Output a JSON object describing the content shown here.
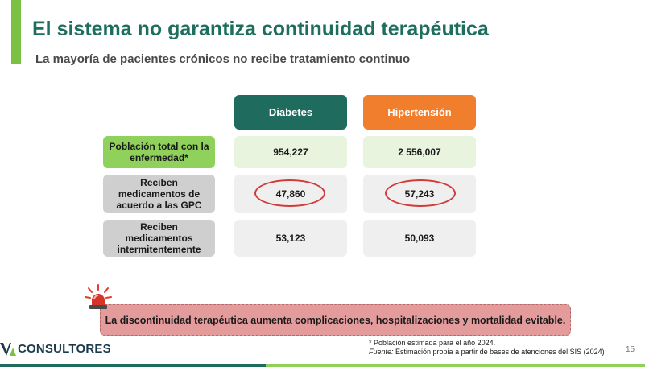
{
  "header": {
    "title": "El sistema no garantiza continuidad terapéutica",
    "subtitle": "La mayoría de pacientes crónicos no recibe tratamiento continuo"
  },
  "table": {
    "columns": [
      "Diabetes",
      "Hipertensión"
    ],
    "rows": [
      {
        "label": "Población total con la enfermedad*",
        "values": [
          "954,227",
          "2 556,007"
        ]
      },
      {
        "label": "Reciben medicamentos de acuerdo a las GPC",
        "values": [
          "47,860",
          "57,243"
        ]
      },
      {
        "label": "Reciben medicamentos intermitentemente",
        "values": [
          "53,123",
          "50,093"
        ]
      }
    ]
  },
  "callout": {
    "text": "La discontinuidad terapéutica aumenta complicaciones, hospitalizaciones y mortalidad evitable."
  },
  "footer": {
    "logo_text": "CONSULTORES",
    "note": "* Población estimada para el año 2024.",
    "source_label": "Fuente:",
    "source_text": " Estimación propia a partir de bases de atenciones del SIS (2024)",
    "page_number": "15"
  },
  "colors": {
    "accent_green": "#7ac143",
    "title_teal": "#1e6e5e",
    "diabetes": "#1f6b5d",
    "hipertension": "#f07e2c",
    "highlight_red": "#d23b3b"
  },
  "icons": {
    "alarm": "alarm-light-icon",
    "logo": "va-logo-icon"
  }
}
